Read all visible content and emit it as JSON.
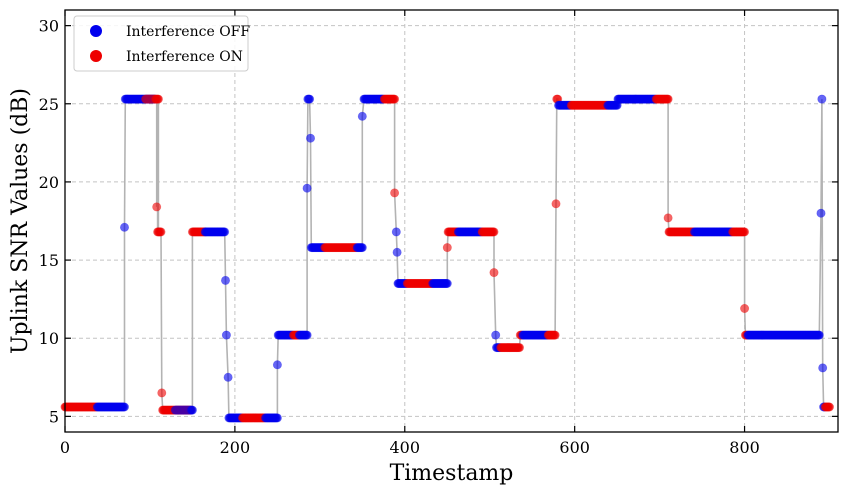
{
  "chart_data": {
    "type": "scatter",
    "title": "",
    "xlabel": "Timestamp",
    "ylabel": "Uplink SNR Values (dB)",
    "xlim": [
      0,
      910
    ],
    "ylim": [
      4,
      31
    ],
    "xticks": [
      0,
      200,
      400,
      600,
      800
    ],
    "yticks": [
      5,
      10,
      15,
      20,
      25,
      30
    ],
    "grid": true,
    "legend_position": "top-left",
    "connector_color": "#b3b3b3",
    "segments": [
      {
        "s": 0,
        "e": 37,
        "y": 5.6,
        "state": "on"
      },
      {
        "s": 38,
        "e": 70,
        "y": 5.6,
        "state": "off"
      },
      {
        "s": 70,
        "e": 70,
        "y": 17.1,
        "state": "off"
      },
      {
        "s": 71,
        "e": 106,
        "y": 25.3,
        "state": "off"
      },
      {
        "s": 95,
        "e": 110,
        "y": 25.3,
        "state": "on"
      },
      {
        "s": 108,
        "e": 108,
        "y": 18.4,
        "state": "on"
      },
      {
        "s": 109,
        "e": 113,
        "y": 16.8,
        "state": "on"
      },
      {
        "s": 114,
        "e": 114,
        "y": 6.5,
        "state": "on"
      },
      {
        "s": 115,
        "e": 148,
        "y": 5.4,
        "state": "on"
      },
      {
        "s": 130,
        "e": 150,
        "y": 5.4,
        "state": "off"
      },
      {
        "s": 150,
        "e": 165,
        "y": 16.8,
        "state": "on"
      },
      {
        "s": 165,
        "e": 188,
        "y": 16.8,
        "state": "off"
      },
      {
        "s": 189,
        "e": 189,
        "y": 13.7,
        "state": "off"
      },
      {
        "s": 190,
        "e": 190,
        "y": 10.2,
        "state": "off"
      },
      {
        "s": 192,
        "e": 192,
        "y": 7.5,
        "state": "off"
      },
      {
        "s": 193,
        "e": 208,
        "y": 4.9,
        "state": "off"
      },
      {
        "s": 209,
        "e": 235,
        "y": 4.9,
        "state": "on"
      },
      {
        "s": 236,
        "e": 250,
        "y": 4.9,
        "state": "off"
      },
      {
        "s": 250,
        "e": 250,
        "y": 8.3,
        "state": "off"
      },
      {
        "s": 251,
        "e": 268,
        "y": 10.2,
        "state": "off"
      },
      {
        "s": 269,
        "e": 275,
        "y": 10.2,
        "state": "on"
      },
      {
        "s": 276,
        "e": 285,
        "y": 10.2,
        "state": "off"
      },
      {
        "s": 285,
        "e": 285,
        "y": 19.6,
        "state": "off"
      },
      {
        "s": 286,
        "e": 288,
        "y": 25.3,
        "state": "off"
      },
      {
        "s": 289,
        "e": 289,
        "y": 22.8,
        "state": "off"
      },
      {
        "s": 290,
        "e": 305,
        "y": 15.8,
        "state": "off"
      },
      {
        "s": 306,
        "e": 343,
        "y": 15.8,
        "state": "on"
      },
      {
        "s": 344,
        "e": 350,
        "y": 15.8,
        "state": "off"
      },
      {
        "s": 350,
        "e": 350,
        "y": 24.2,
        "state": "off"
      },
      {
        "s": 352,
        "e": 375,
        "y": 25.3,
        "state": "off"
      },
      {
        "s": 376,
        "e": 388,
        "y": 25.3,
        "state": "on"
      },
      {
        "s": 388,
        "e": 388,
        "y": 19.3,
        "state": "on"
      },
      {
        "s": 390,
        "e": 390,
        "y": 16.8,
        "state": "off"
      },
      {
        "s": 391,
        "e": 391,
        "y": 15.5,
        "state": "off"
      },
      {
        "s": 392,
        "e": 402,
        "y": 13.5,
        "state": "off"
      },
      {
        "s": 403,
        "e": 432,
        "y": 13.5,
        "state": "on"
      },
      {
        "s": 433,
        "e": 450,
        "y": 13.5,
        "state": "off"
      },
      {
        "s": 450,
        "e": 450,
        "y": 15.8,
        "state": "on"
      },
      {
        "s": 451,
        "e": 462,
        "y": 16.8,
        "state": "on"
      },
      {
        "s": 463,
        "e": 490,
        "y": 16.8,
        "state": "off"
      },
      {
        "s": 491,
        "e": 505,
        "y": 16.8,
        "state": "on"
      },
      {
        "s": 505,
        "e": 505,
        "y": 14.2,
        "state": "on"
      },
      {
        "s": 507,
        "e": 507,
        "y": 10.2,
        "state": "off"
      },
      {
        "s": 508,
        "e": 512,
        "y": 9.4,
        "state": "off"
      },
      {
        "s": 513,
        "e": 535,
        "y": 9.4,
        "state": "on"
      },
      {
        "s": 536,
        "e": 538,
        "y": 10.2,
        "state": "on"
      },
      {
        "s": 539,
        "e": 568,
        "y": 10.2,
        "state": "off"
      },
      {
        "s": 569,
        "e": 577,
        "y": 10.2,
        "state": "on"
      },
      {
        "s": 578,
        "e": 578,
        "y": 18.6,
        "state": "on"
      },
      {
        "s": 579,
        "e": 580,
        "y": 25.3,
        "state": "on"
      },
      {
        "s": 581,
        "e": 595,
        "y": 24.9,
        "state": "off"
      },
      {
        "s": 596,
        "e": 638,
        "y": 24.9,
        "state": "on"
      },
      {
        "s": 639,
        "e": 650,
        "y": 24.9,
        "state": "off"
      },
      {
        "s": 651,
        "e": 695,
        "y": 25.3,
        "state": "off"
      },
      {
        "s": 696,
        "e": 710,
        "y": 25.3,
        "state": "on"
      },
      {
        "s": 710,
        "e": 710,
        "y": 17.7,
        "state": "on"
      },
      {
        "s": 711,
        "e": 740,
        "y": 16.8,
        "state": "on"
      },
      {
        "s": 741,
        "e": 785,
        "y": 16.8,
        "state": "off"
      },
      {
        "s": 786,
        "e": 800,
        "y": 16.8,
        "state": "on"
      },
      {
        "s": 800,
        "e": 800,
        "y": 11.9,
        "state": "on"
      },
      {
        "s": 801,
        "e": 803,
        "y": 10.2,
        "state": "on"
      },
      {
        "s": 804,
        "e": 888,
        "y": 10.2,
        "state": "off"
      },
      {
        "s": 890,
        "e": 890,
        "y": 18.0,
        "state": "off"
      },
      {
        "s": 891,
        "e": 891,
        "y": 25.3,
        "state": "off"
      },
      {
        "s": 892,
        "e": 892,
        "y": 8.1,
        "state": "off"
      },
      {
        "s": 893,
        "e": 894,
        "y": 5.6,
        "state": "off"
      },
      {
        "s": 895,
        "e": 900,
        "y": 5.6,
        "state": "on"
      }
    ],
    "series": [
      {
        "name": "Interference OFF",
        "key": "off",
        "color": "#0000ee"
      },
      {
        "name": "Interference ON",
        "key": "on",
        "color": "#ee0000"
      }
    ]
  }
}
